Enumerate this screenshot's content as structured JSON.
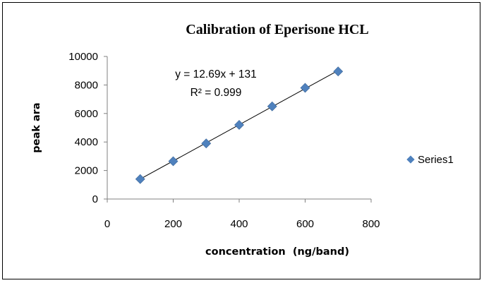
{
  "chart_data": {
    "type": "scatter",
    "title": "Calibration of Eperisone HCL",
    "xlabel": "concentration  (ng/band)",
    "ylabel": "peak ara",
    "xlim": [
      0,
      800
    ],
    "ylim": [
      0,
      10000
    ],
    "x_ticks": [
      "0",
      "200",
      "400",
      "600",
      "800"
    ],
    "y_ticks": [
      "0",
      "2000",
      "4000",
      "6000",
      "8000",
      "10000"
    ],
    "grid": false,
    "legend_position": "right",
    "series": [
      {
        "name": "Series1",
        "color": "#4f81bd",
        "marker": "diamond",
        "x": [
          100,
          200,
          300,
          400,
          500,
          600,
          700
        ],
        "y": [
          1400,
          2650,
          3900,
          5200,
          6500,
          7800,
          8950
        ]
      }
    ],
    "trendline": {
      "type": "linear",
      "slope": 12.69,
      "intercept": 131,
      "color": "#000000",
      "equation": "y = 12.69x + 131",
      "r_squared": "R² = 0.999"
    }
  }
}
